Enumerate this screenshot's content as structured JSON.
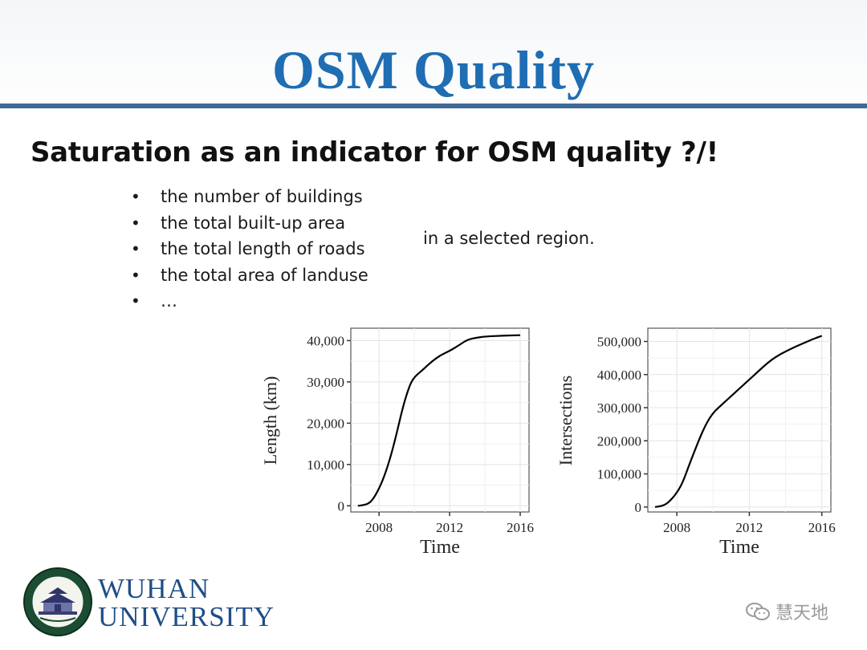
{
  "slide": {
    "title": "OSM Quality",
    "heading": "Saturation as an indicator for OSM quality ?/!",
    "bullets": [
      "the number of buildings",
      "the total built-up area",
      "the total length of roads",
      "the total area of landuse",
      "…"
    ],
    "suffix": "in a selected region."
  },
  "footer": {
    "university_line1": "WUHAN",
    "university_line2": "UNIVERSITY",
    "watermark": "慧天地"
  },
  "colors": {
    "title": "#1f6db3",
    "rule": "#3d6a97",
    "university": "#1f4e86"
  },
  "chart_data": [
    {
      "type": "line",
      "title": "",
      "xlabel": "Time",
      "ylabel": "Length (km)",
      "xlim": [
        2006.4,
        2016.5
      ],
      "ylim": [
        -1500,
        43000
      ],
      "xticks": [
        2008,
        2012,
        2016
      ],
      "xtick_labels": [
        "2008",
        "2012",
        "2016"
      ],
      "yticks": [
        0,
        10000,
        20000,
        30000,
        40000
      ],
      "ytick_labels": [
        "0",
        "10,000",
        "20,000",
        "30,000",
        "40,000"
      ],
      "series": [
        {
          "name": "Length (km)",
          "x": [
            2006.8,
            2007.2,
            2007.5,
            2007.8,
            2008.2,
            2008.6,
            2009.0,
            2009.3,
            2009.6,
            2009.9,
            2010.5,
            2011.0,
            2011.5,
            2012.0,
            2012.5,
            2013.0,
            2013.5,
            2014.0,
            2015.0,
            2016.0
          ],
          "y": [
            0,
            200,
            800,
            2500,
            6000,
            11000,
            17500,
            23000,
            27500,
            30800,
            33000,
            35000,
            36500,
            37500,
            38800,
            40200,
            40700,
            41000,
            41200,
            41300
          ]
        }
      ]
    },
    {
      "type": "line",
      "title": "",
      "xlabel": "Time",
      "ylabel": "Intersections",
      "xlim": [
        2006.4,
        2016.5
      ],
      "ylim": [
        -15000,
        540000
      ],
      "xticks": [
        2008,
        2012,
        2016
      ],
      "xtick_labels": [
        "2008",
        "2012",
        "2016"
      ],
      "yticks": [
        0,
        100000,
        200000,
        300000,
        400000,
        500000
      ],
      "ytick_labels": [
        "0",
        "100,000",
        "200,000",
        "300,000",
        "400,000",
        "500,000"
      ],
      "series": [
        {
          "name": "Intersections",
          "x": [
            2006.8,
            2007.2,
            2007.5,
            2007.9,
            2008.3,
            2008.7,
            2009.2,
            2009.6,
            2010.0,
            2010.5,
            2011.0,
            2011.5,
            2012.0,
            2012.5,
            2013.0,
            2013.5,
            2014.0,
            2014.5,
            2015.0,
            2015.5,
            2016.0
          ],
          "y": [
            0,
            3000,
            12000,
            35000,
            70000,
            130000,
            200000,
            250000,
            285000,
            310000,
            335000,
            360000,
            385000,
            410000,
            435000,
            455000,
            470000,
            483000,
            495000,
            507000,
            517000
          ]
        }
      ]
    }
  ]
}
